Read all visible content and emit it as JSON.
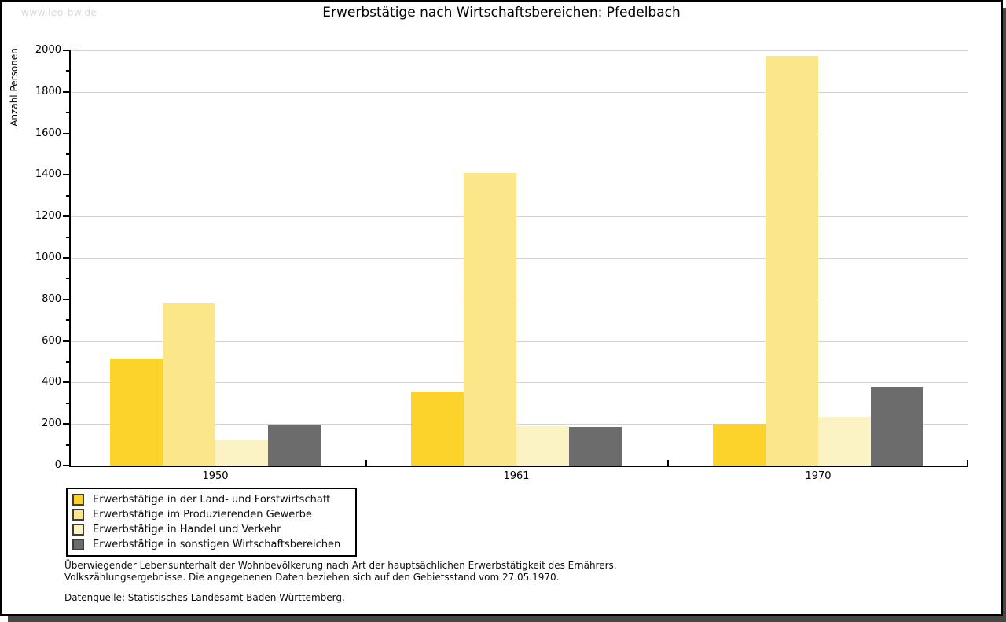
{
  "watermark": "www.leo-bw.de",
  "chart_data": {
    "type": "bar",
    "title": "Erwerbstätige nach Wirtschaftsbereichen: Pfedelbach",
    "xlabel": "",
    "ylabel": "Anzahl Personen",
    "categories": [
      "1950",
      "1961",
      "1970"
    ],
    "series": [
      {
        "name": "Erwerbstätige in der Land- und Forstwirtschaft",
        "color": "#FCD32B",
        "values": [
          515,
          355,
          200
        ]
      },
      {
        "name": "Erwerbstätige im Produzierenden Gewerbe",
        "color": "#FBE78A",
        "values": [
          785,
          1410,
          1975
        ]
      },
      {
        "name": "Erwerbstätige in Handel und Verkehr",
        "color": "#FCF3C4",
        "values": [
          125,
          190,
          235
        ]
      },
      {
        "name": "Erwerbstätige in sonstigen Wirtschaftsbereichen",
        "color": "#6C6C6C",
        "values": [
          195,
          185,
          380
        ]
      }
    ],
    "ylim": [
      0,
      2000
    ],
    "ytick_step": 200,
    "yminor_step": 100,
    "grid": true,
    "legend_position": "bottom-left",
    "gridline_color": "#d3d3d3"
  },
  "footnotes": [
    "Überwiegender Lebensunterhalt der Wohnbevölkerung nach Art der hauptsächlichen Erwerbstätigkeit des Ernährers.",
    "Volkszählungsergebnisse. Die angegebenen Daten beziehen sich auf den Gebietsstand vom 27.05.1970.",
    "Datenquelle: Statistisches Landesamt Baden-Württemberg."
  ]
}
